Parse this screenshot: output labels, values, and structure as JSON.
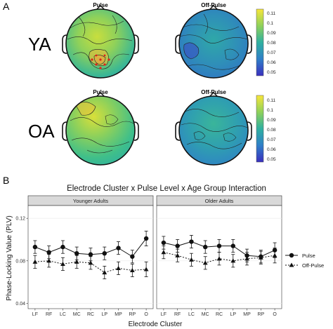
{
  "panel_a": {
    "letter": "A",
    "row_labels": [
      "YA",
      "OA"
    ],
    "map_titles": [
      "Pulse",
      "Off-Pulse",
      "Pulse",
      "Off-Pulse"
    ],
    "colorbar_ticks": [
      "0.11",
      "0.1",
      "0.09",
      "0.08",
      "0.07",
      "0.06",
      "0.05"
    ],
    "colors": {
      "high": "#f7e63a",
      "mid_high": "#8fd15a",
      "mid": "#2fb0a0",
      "mid_low": "#2f7fc8",
      "low": "#3a2fbe",
      "electrode": "#e0201a"
    }
  },
  "panel_b": {
    "letter": "B"
  },
  "chart_data": {
    "type": "line",
    "title": "Electrode Cluster x Pulse Level x Age Group Interaction",
    "xlabel": "Electrode Cluster",
    "ylabel": "Phase-Locking Value (PLV)",
    "ylim": [
      0.035,
      0.132
    ],
    "yticks": [
      "0.04",
      "0.08",
      "0.12"
    ],
    "categories": [
      "LF",
      "RF",
      "LC",
      "MC",
      "RC",
      "LP",
      "MP",
      "RP",
      "O"
    ],
    "legend": {
      "position": "right",
      "entries": [
        "Pulse",
        "Off-Pulse"
      ]
    },
    "facets": [
      {
        "name": "Younger Adults",
        "series": [
          {
            "name": "Pulse",
            "values": [
              0.093,
              0.088,
              0.093,
              0.087,
              0.086,
              0.087,
              0.092,
              0.084,
              0.101
            ],
            "err": [
              0.006,
              0.006,
              0.006,
              0.006,
              0.006,
              0.006,
              0.006,
              0.006,
              0.007
            ]
          },
          {
            "name": "Off-Pulse",
            "values": [
              0.079,
              0.08,
              0.077,
              0.079,
              0.078,
              0.069,
              0.073,
              0.071,
              0.072
            ],
            "err": [
              0.006,
              0.006,
              0.006,
              0.006,
              0.006,
              0.006,
              0.006,
              0.006,
              0.007
            ]
          }
        ]
      },
      {
        "name": "Older Adults",
        "series": [
          {
            "name": "Pulse",
            "values": [
              0.097,
              0.094,
              0.098,
              0.093,
              0.094,
              0.094,
              0.085,
              0.084,
              0.09
            ],
            "err": [
              0.006,
              0.006,
              0.006,
              0.006,
              0.006,
              0.006,
              0.006,
              0.006,
              0.007
            ]
          },
          {
            "name": "Off-Pulse",
            "values": [
              0.088,
              0.085,
              0.081,
              0.078,
              0.082,
              0.08,
              0.082,
              0.083,
              0.085
            ],
            "err": [
              0.006,
              0.006,
              0.006,
              0.006,
              0.006,
              0.006,
              0.006,
              0.006,
              0.007
            ]
          }
        ]
      }
    ]
  }
}
